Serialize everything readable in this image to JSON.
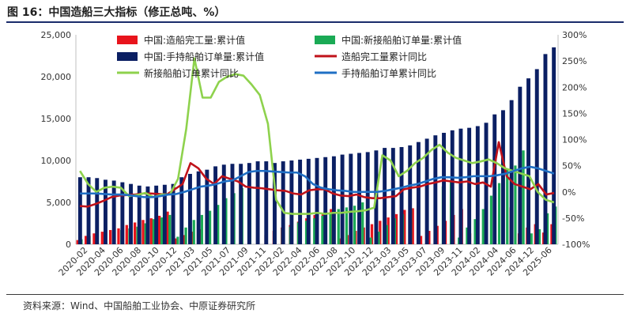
{
  "figure": {
    "title": "图 16：中国造船三大指标（修正总吨、%）",
    "source": "资料来源：Wind、中国船舶工业协会、中原证券研究所"
  },
  "colors": {
    "completed": "#e8141c",
    "new_orders": "#1aaa55",
    "backlog": "#0b1f63",
    "completed_yoy": "#c0121a",
    "new_orders_yoy": "#8ed24d",
    "backlog_yoy": "#1f6fc4",
    "rule": "#1a2c6b"
  },
  "chart_data": {
    "type": "bar+line",
    "x_tick_labels": [
      "2020-02",
      "2020-04",
      "2020-06",
      "2020-08",
      "2020-10",
      "2020-12",
      "2021-03",
      "2021-05",
      "2021-07",
      "2021-09",
      "2021-11",
      "2022-02",
      "2022-04",
      "2022-06",
      "2022-08",
      "2022-10",
      "2022-12",
      "2023-03",
      "2023-05",
      "2023-07",
      "2023-09",
      "2023-11",
      "2024-02",
      "2024-04",
      "2024-06",
      "2024-12",
      "2025-06"
    ],
    "left_axis": {
      "range": [
        0,
        25000
      ],
      "ticks": [
        "0",
        "5,000",
        "10,000",
        "15,000",
        "20,000",
        "25,000"
      ],
      "tick_values": [
        0,
        5000,
        10000,
        15000,
        20000,
        25000
      ]
    },
    "right_axis": {
      "range": [
        -100,
        300
      ],
      "ticks": [
        "-100%",
        "-50%",
        "0%",
        "50%",
        "100%",
        "150%",
        "200%",
        "250%",
        "300%"
      ],
      "tick_values": [
        -100,
        -50,
        0,
        50,
        100,
        150,
        200,
        250,
        300
      ]
    },
    "legend": {
      "completed": "中国:造船完工量:累计值",
      "new_orders": "中国:新接船舶订单量:累计值",
      "backlog": "中国:手持船舶订单量:累计值",
      "completed_yoy": "造船完工量累计同比",
      "new_orders_yoy": "新接船舶订单累计同比",
      "backlog_yoy": "手持船舶订单累计同比"
    },
    "series": [
      {
        "key": "completed",
        "name": "中国:造船完工量:累计值",
        "type": "bar",
        "axis": "left",
        "values": [
          500,
          1000,
          1300,
          1500,
          1700,
          1900,
          2300,
          2600,
          2900,
          3100,
          3400,
          3900,
          700,
          1100,
          1500,
          1800,
          2200,
          2500,
          2800,
          3200,
          3500,
          4000,
          700,
          1100,
          1600,
          2000,
          2300,
          2700,
          3100,
          3500,
          3700,
          4200,
          700,
          1100,
          1600,
          2000,
          2400,
          2800,
          3200,
          3600,
          4100,
          4300,
          1000,
          1600,
          2200,
          2800,
          3500,
          4200,
          1300,
          1700,
          2400,
          2900,
          3700,
          4400,
          1300,
          2000,
          2400,
          1400,
          2400
        ]
      },
      {
        "key": "new_orders",
        "name": "中国:新接船舶订单量:累计值",
        "type": "bar",
        "axis": "left",
        "values": [
          600,
          1000,
          1200,
          1300,
          1500,
          1700,
          1900,
          2100,
          2500,
          3000,
          3200,
          3500,
          900,
          2000,
          2900,
          3500,
          4000,
          4700,
          5500,
          6100,
          6700,
          6900,
          7100,
          700,
          1400,
          1900,
          2100,
          2600,
          2800,
          3100,
          3400,
          3800,
          4200,
          4400,
          4600,
          5000,
          800,
          1500,
          2300,
          3100,
          3600,
          4300,
          4800,
          5600,
          6400,
          6900,
          7500,
          800,
          2000,
          3000,
          4200,
          5800,
          7300,
          8900,
          9400,
          11200,
          1300,
          1800,
          3700,
          4500
        ]
      },
      {
        "key": "backlog",
        "name": "中国:手持船舶订单量:累计值",
        "type": "bar",
        "axis": "left",
        "values": [
          8000,
          8000,
          7900,
          7700,
          7600,
          7400,
          7200,
          7000,
          6900,
          7000,
          7100,
          7200,
          8000,
          8400,
          8700,
          8900,
          9300,
          9500,
          9600,
          9600,
          9700,
          9900,
          9900,
          9700,
          9900,
          10000,
          10100,
          10200,
          10300,
          10400,
          10500,
          10700,
          10800,
          10900,
          11000,
          11200,
          11500,
          11500,
          11600,
          11800,
          12200,
          12600,
          13000,
          13300,
          13600,
          13800,
          13900,
          14100,
          14500,
          15500,
          16000,
          17200,
          18800,
          19800,
          20900,
          22700,
          23500
        ]
      },
      {
        "key": "completed_yoy",
        "name": "造船完工量累计同比",
        "type": "line",
        "axis": "right",
        "values": [
          -27,
          -28,
          -23,
          -17,
          -10,
          -7,
          -6,
          -5,
          -3,
          -3,
          -4,
          -5,
          5,
          15,
          55,
          45,
          25,
          15,
          30,
          25,
          20,
          10,
          8,
          7,
          5,
          3,
          2,
          -3,
          -5,
          3,
          5,
          5,
          -3,
          -7,
          -8,
          -5,
          -10,
          -12,
          -12,
          -10,
          -8,
          5,
          8,
          10,
          15,
          18,
          22,
          20,
          18,
          20,
          15,
          18,
          10,
          95,
          30,
          15,
          10,
          5,
          15,
          -5,
          -2
        ]
      },
      {
        "key": "new_orders_yoy",
        "name": "新接船舶订单累计同比",
        "type": "line",
        "axis": "right",
        "values": [
          40,
          15,
          0,
          8,
          10,
          8,
          -8,
          -6,
          -2,
          -10,
          -5,
          -5,
          25,
          120,
          255,
          180,
          180,
          210,
          220,
          225,
          222,
          205,
          185,
          130,
          -15,
          -40,
          -42,
          -42,
          -42,
          -40,
          -42,
          -40,
          -40,
          -38,
          -37,
          -35,
          -30,
          70,
          60,
          30,
          40,
          55,
          65,
          80,
          90,
          75,
          65,
          60,
          55,
          58,
          62,
          55,
          45,
          40,
          35,
          30,
          0,
          -15,
          -20
        ]
      },
      {
        "key": "backlog_yoy",
        "name": "手持船舶订单累计同比",
        "type": "line",
        "axis": "right",
        "values": [
          -3,
          -3,
          -3,
          -4,
          -5,
          -5,
          -6,
          -8,
          -10,
          -10,
          -8,
          -5,
          -4,
          0,
          5,
          10,
          12,
          15,
          20,
          22,
          30,
          38,
          40,
          40,
          39,
          38,
          37,
          37,
          30,
          15,
          8,
          5,
          3,
          2,
          0,
          0,
          0,
          0,
          2,
          5,
          8,
          12,
          15,
          20,
          25,
          28,
          28,
          27,
          28,
          30,
          30,
          30,
          32,
          35,
          40,
          45,
          48,
          45,
          40,
          35
        ]
      }
    ]
  }
}
